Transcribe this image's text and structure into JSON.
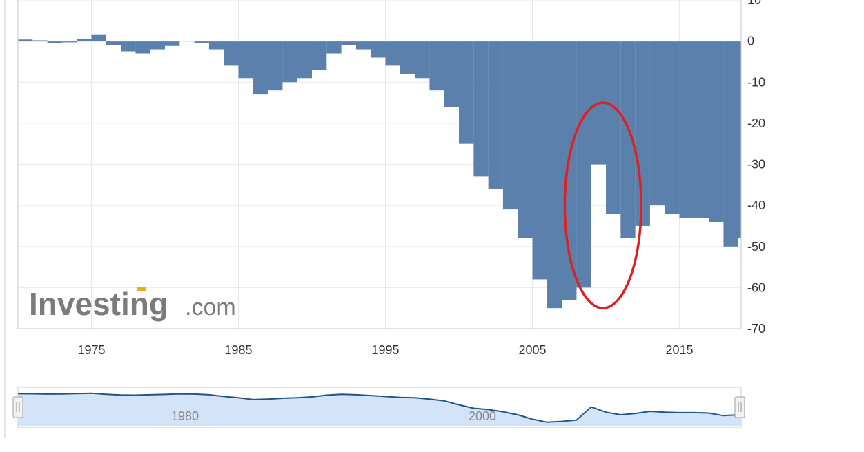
{
  "brand": {
    "logo_main": "Investing",
    "logo_suffix": ".com"
  },
  "colors": {
    "bars": "#5b80ac",
    "grid": "#e8e8e8",
    "axis": "#c8c8c8",
    "highlight": "#e02020",
    "navigator_fill": "#d3e4f8",
    "navigator_line": "#1f5582"
  },
  "chart_data": {
    "type": "bar",
    "title": "",
    "xlabel": "",
    "ylabel": "",
    "ylim": [
      -70,
      10
    ],
    "xlim": [
      1970,
      2019.2
    ],
    "y_ticks": [
      "10",
      "0",
      "-10",
      "-20",
      "-30",
      "-40",
      "-50",
      "-60",
      "-70"
    ],
    "x_ticks": [
      "1975",
      "1985",
      "1995",
      "2005",
      "2015"
    ],
    "grid": true,
    "y_axis_side": "right",
    "annotation": {
      "type": "ellipse",
      "color": "red",
      "center": [
        2009.8,
        -40
      ],
      "radii_years": 2.6,
      "radii_value": 25
    },
    "series": [
      {
        "x": [
          1970,
          1971,
          1972,
          1973,
          1974,
          1975,
          1976,
          1977,
          1978,
          1979,
          1980,
          1981,
          1982,
          1983,
          1984,
          1985,
          1986,
          1987,
          1988,
          1989,
          1990,
          1991,
          1992,
          1993,
          1994,
          1995,
          1996,
          1997,
          1998,
          1999,
          2000,
          2001,
          2002,
          2003,
          2004,
          2005,
          2006,
          2007,
          2008,
          2009,
          2010,
          2011,
          2012,
          2013,
          2014,
          2015,
          2016,
          2017,
          2018,
          2019
        ],
        "values": [
          0.4,
          0.2,
          -0.5,
          -0.3,
          0.5,
          1.5,
          -1,
          -2.5,
          -3,
          -2,
          -1.2,
          0,
          -0.5,
          -2,
          -6,
          -9,
          -13,
          -12,
          -10,
          -9,
          -7,
          -3,
          -1,
          -2,
          -4,
          -6,
          -8,
          -9,
          -12,
          -16,
          -25,
          -33,
          -36,
          -41,
          -48,
          -58,
          -65,
          -63,
          -60,
          -30,
          -42,
          -48,
          -45,
          -40,
          -42,
          -43,
          -43,
          -44,
          -50,
          -48
        ]
      }
    ],
    "navigator": {
      "type": "area",
      "x_ticks": [
        "1980",
        "2000"
      ]
    }
  }
}
